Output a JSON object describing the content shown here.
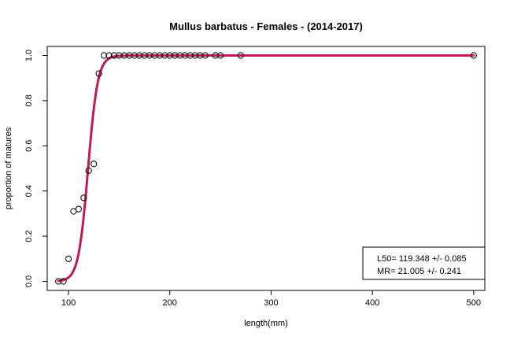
{
  "chart_data": {
    "type": "scatter",
    "title": "Mullus barbatus - Females - (2014-2017)",
    "xlabel": "length(mm)",
    "ylabel": "proportion of matures",
    "xlim": [
      79,
      511
    ],
    "ylim": [
      -0.04,
      1.04
    ],
    "x_ticks": [
      100,
      200,
      300,
      400,
      500
    ],
    "y_ticks": [
      0.0,
      0.2,
      0.4,
      0.6,
      0.8,
      1.0
    ],
    "x_tick_labels": [
      "100",
      "200",
      "300",
      "400",
      "500"
    ],
    "y_tick_labels": [
      "0.0",
      "0.2",
      "0.4",
      "0.6",
      "0.8",
      "1.0"
    ],
    "grid": false,
    "points": {
      "x": [
        90,
        95,
        100,
        105,
        110,
        115,
        120,
        125,
        130,
        135,
        140,
        145,
        150,
        155,
        160,
        165,
        170,
        175,
        180,
        185,
        190,
        195,
        200,
        205,
        210,
        215,
        220,
        225,
        230,
        235,
        245,
        250,
        270,
        500
      ],
      "y": [
        0.0,
        0.0,
        0.1,
        0.31,
        0.32,
        0.37,
        0.49,
        0.52,
        0.92,
        1.0,
        1.0,
        1.0,
        1.0,
        1.0,
        1.0,
        1.0,
        1.0,
        1.0,
        1.0,
        1.0,
        1.0,
        1.0,
        1.0,
        1.0,
        1.0,
        1.0,
        1.0,
        1.0,
        1.0,
        1.0,
        1.0,
        1.0,
        1.0,
        1.0
      ]
    },
    "fit": {
      "model": "logistic",
      "L50": 119.348,
      "MR": 21.005,
      "x_range": [
        90,
        500
      ],
      "color": "#c2185b"
    },
    "legend": {
      "position": "bottom-right",
      "lines": [
        "L50=  119.348 +/- 0.085",
        "MR=  21.005 +/- 0.241"
      ]
    }
  }
}
